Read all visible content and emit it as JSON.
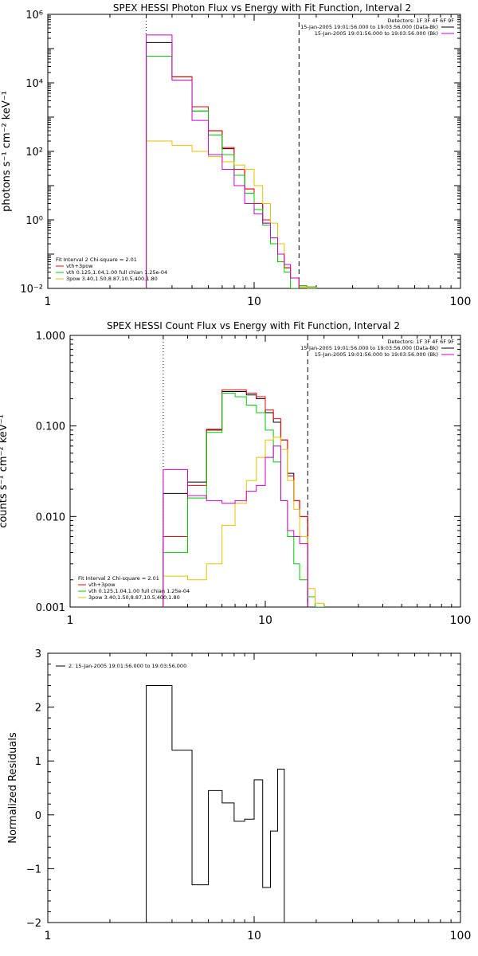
{
  "chart_data": [
    {
      "type": "line",
      "title": "SPEX HESSI Photon Flux vs Energy with Fit Function, Interval 2",
      "ylabel": "photons s⁻¹ cm⁻² keV⁻¹",
      "xscale": "log",
      "yscale": "log",
      "xlim": [
        1,
        100
      ],
      "ylim": [
        0.01,
        1000000
      ],
      "xticks": [
        "1",
        "10",
        "100"
      ],
      "yticks": [
        "10⁻²",
        "10⁰",
        "10²",
        "10⁴",
        "10⁶"
      ],
      "energy_range_markers_keV": [
        3,
        16.5
      ],
      "legend_top_right": [
        "Detectors: 1F 3F 4F 6F 9F",
        "15-Jan-2005 19:01:56.000 to 19:03:56.000 (Data-Bk)",
        "15-Jan-2005 19:01:56.000 to 19:03:56.000 (Bk)"
      ],
      "legend_bottom_left": [
        "Fit Interval 2   Chi-square = 2.01",
        "vth+3pow",
        "vth 0.125,1.04,1.00  full chian 1.25e-04",
        "3pow 3.40,1.50,8.87,10.5,400,1.80"
      ],
      "bin_edges_keV": [
        3.0,
        4.0,
        5.0,
        6.0,
        7.0,
        8.0,
        9.0,
        10.0,
        11.0,
        12.0,
        13.0,
        14.0,
        15.0,
        16.5,
        18.0,
        20.0
      ],
      "series": [
        {
          "name": "Data-Bk",
          "color": "#000000",
          "values": [
            150000,
            15000,
            1500,
            400,
            120,
            30,
            8,
            3,
            0.8,
            0.3,
            0.1,
            0.04,
            0.02,
            null,
            null
          ]
        },
        {
          "name": "vth+3pow",
          "color": "#ff0000",
          "values": [
            60000,
            15000,
            2000,
            400,
            130,
            30,
            8,
            3,
            1,
            0.3,
            0.1,
            0.04,
            0.02,
            0.012,
            0.011
          ]
        },
        {
          "name": "vth 0.125,1.04,1.00",
          "color": "#00cc00",
          "values": [
            60000,
            12000,
            1500,
            300,
            80,
            20,
            6,
            2,
            0.7,
            0.2,
            0.06,
            0.03,
            0.01,
            0.012,
            0.011
          ]
        },
        {
          "name": "3pow 3.40,1.50,8.87,10.5,400,1.80",
          "color": "#e6c200",
          "values": [
            200,
            150,
            100,
            70,
            50,
            40,
            30,
            10,
            3,
            0.8,
            0.2,
            0.05,
            0.02,
            0.011,
            0.01
          ]
        },
        {
          "name": "Bk",
          "color": "#cc00cc",
          "values": [
            250000,
            12000,
            800,
            80,
            30,
            10,
            3,
            1.5,
            0.8,
            0.3,
            0.1,
            0.05,
            0.02,
            null,
            null
          ]
        }
      ]
    },
    {
      "type": "line",
      "title": "SPEX HESSI Count Flux vs Energy with Fit Function, Interval 2",
      "ylabel": "counts s⁻¹ cm⁻² keV⁻¹",
      "xscale": "log",
      "yscale": "log",
      "xlim": [
        1,
        100
      ],
      "ylim": [
        0.001,
        1.0
      ],
      "xticks": [
        "1",
        "10",
        "100"
      ],
      "yticks": [
        "0.001",
        "0.010",
        "0.100",
        "1.000"
      ],
      "energy_range_markers_keV": [
        3,
        16.5
      ],
      "legend_top_right": [
        "Detectors: 1F 3F 4F 6F 9F",
        "15-Jan-2005 19:01:56.000 to 19:03:56.000 (Data-Bk)",
        "15-Jan-2005 19:01:56.000 to 19:03:56.000 (Bk)"
      ],
      "legend_bottom_left": [
        "Fit Interval 2   Chi-square = 2.01",
        "vth+3pow",
        "vth 0.125,1.04,1.00  full chian 1.25e-04",
        "3pow 3.40,1.50,8.87,10.5,400,1.80"
      ],
      "bin_edges_keV": [
        3.0,
        4.0,
        5.0,
        6.0,
        7.0,
        8.0,
        9.0,
        10.0,
        11.0,
        12.0,
        13.0,
        14.0,
        15.0,
        16.5,
        18.0,
        20.0
      ],
      "series": [
        {
          "name": "Data-Bk",
          "color": "#000000",
          "values": [
            0.018,
            0.024,
            0.09,
            0.24,
            0.24,
            0.22,
            0.2,
            0.14,
            0.11,
            0.07,
            0.03,
            0.015,
            0.01,
            null,
            null
          ]
        },
        {
          "name": "vth+3pow",
          "color": "#ff0000",
          "values": [
            0.006,
            0.022,
            0.092,
            0.25,
            0.25,
            0.23,
            0.21,
            0.15,
            0.12,
            0.07,
            0.028,
            0.015,
            0.01,
            0.0013,
            0.001
          ]
        },
        {
          "name": "vth 0.125,1.04,1.00",
          "color": "#00cc00",
          "values": [
            0.004,
            0.016,
            0.085,
            0.23,
            0.21,
            0.17,
            0.14,
            0.09,
            0.04,
            0.015,
            0.006,
            0.003,
            0.002,
            0.0013,
            0.001
          ]
        },
        {
          "name": "3pow 3.40,1.50,8.87,10.5,400,1.80",
          "color": "#e6c200",
          "values": [
            0.0022,
            0.002,
            0.003,
            0.008,
            0.014,
            0.025,
            0.045,
            0.07,
            0.075,
            0.055,
            0.025,
            0.012,
            0.006,
            0.0016,
            0.0011
          ]
        },
        {
          "name": "Bk",
          "color": "#cc00cc",
          "values": [
            0.033,
            0.017,
            0.015,
            0.014,
            0.015,
            0.019,
            0.022,
            0.045,
            0.06,
            0.015,
            0.007,
            0.006,
            0.005,
            null,
            null
          ]
        }
      ]
    },
    {
      "type": "line",
      "ylabel": "Normalized Residuals",
      "xscale": "log",
      "yscale": "linear",
      "xlim": [
        1,
        100
      ],
      "ylim": [
        -2,
        3
      ],
      "xticks": [
        "1",
        "10",
        "100"
      ],
      "yticks": [
        "−2",
        "−1",
        "0",
        "1",
        "2",
        "3"
      ],
      "legend": [
        "2. 15-Jan-2005 19:01:56.000 to 19:03:56.000"
      ],
      "bin_edges_keV": [
        3.0,
        4.0,
        5.0,
        6.0,
        7.0,
        8.0,
        9.0,
        10.0,
        11.0,
        12.0,
        13.0,
        14.0,
        15.0,
        16.5
      ],
      "series": [
        {
          "name": "2. 15-Jan-2005 19:01:56.000 to 19:03:56.000",
          "color": "#000000",
          "values": [
            2.4,
            1.2,
            -1.3,
            0.45,
            0.22,
            -0.12,
            -0.08,
            0.65,
            -1.35,
            -0.3,
            0.85,
            -2.0,
            -2.0
          ]
        }
      ]
    }
  ]
}
